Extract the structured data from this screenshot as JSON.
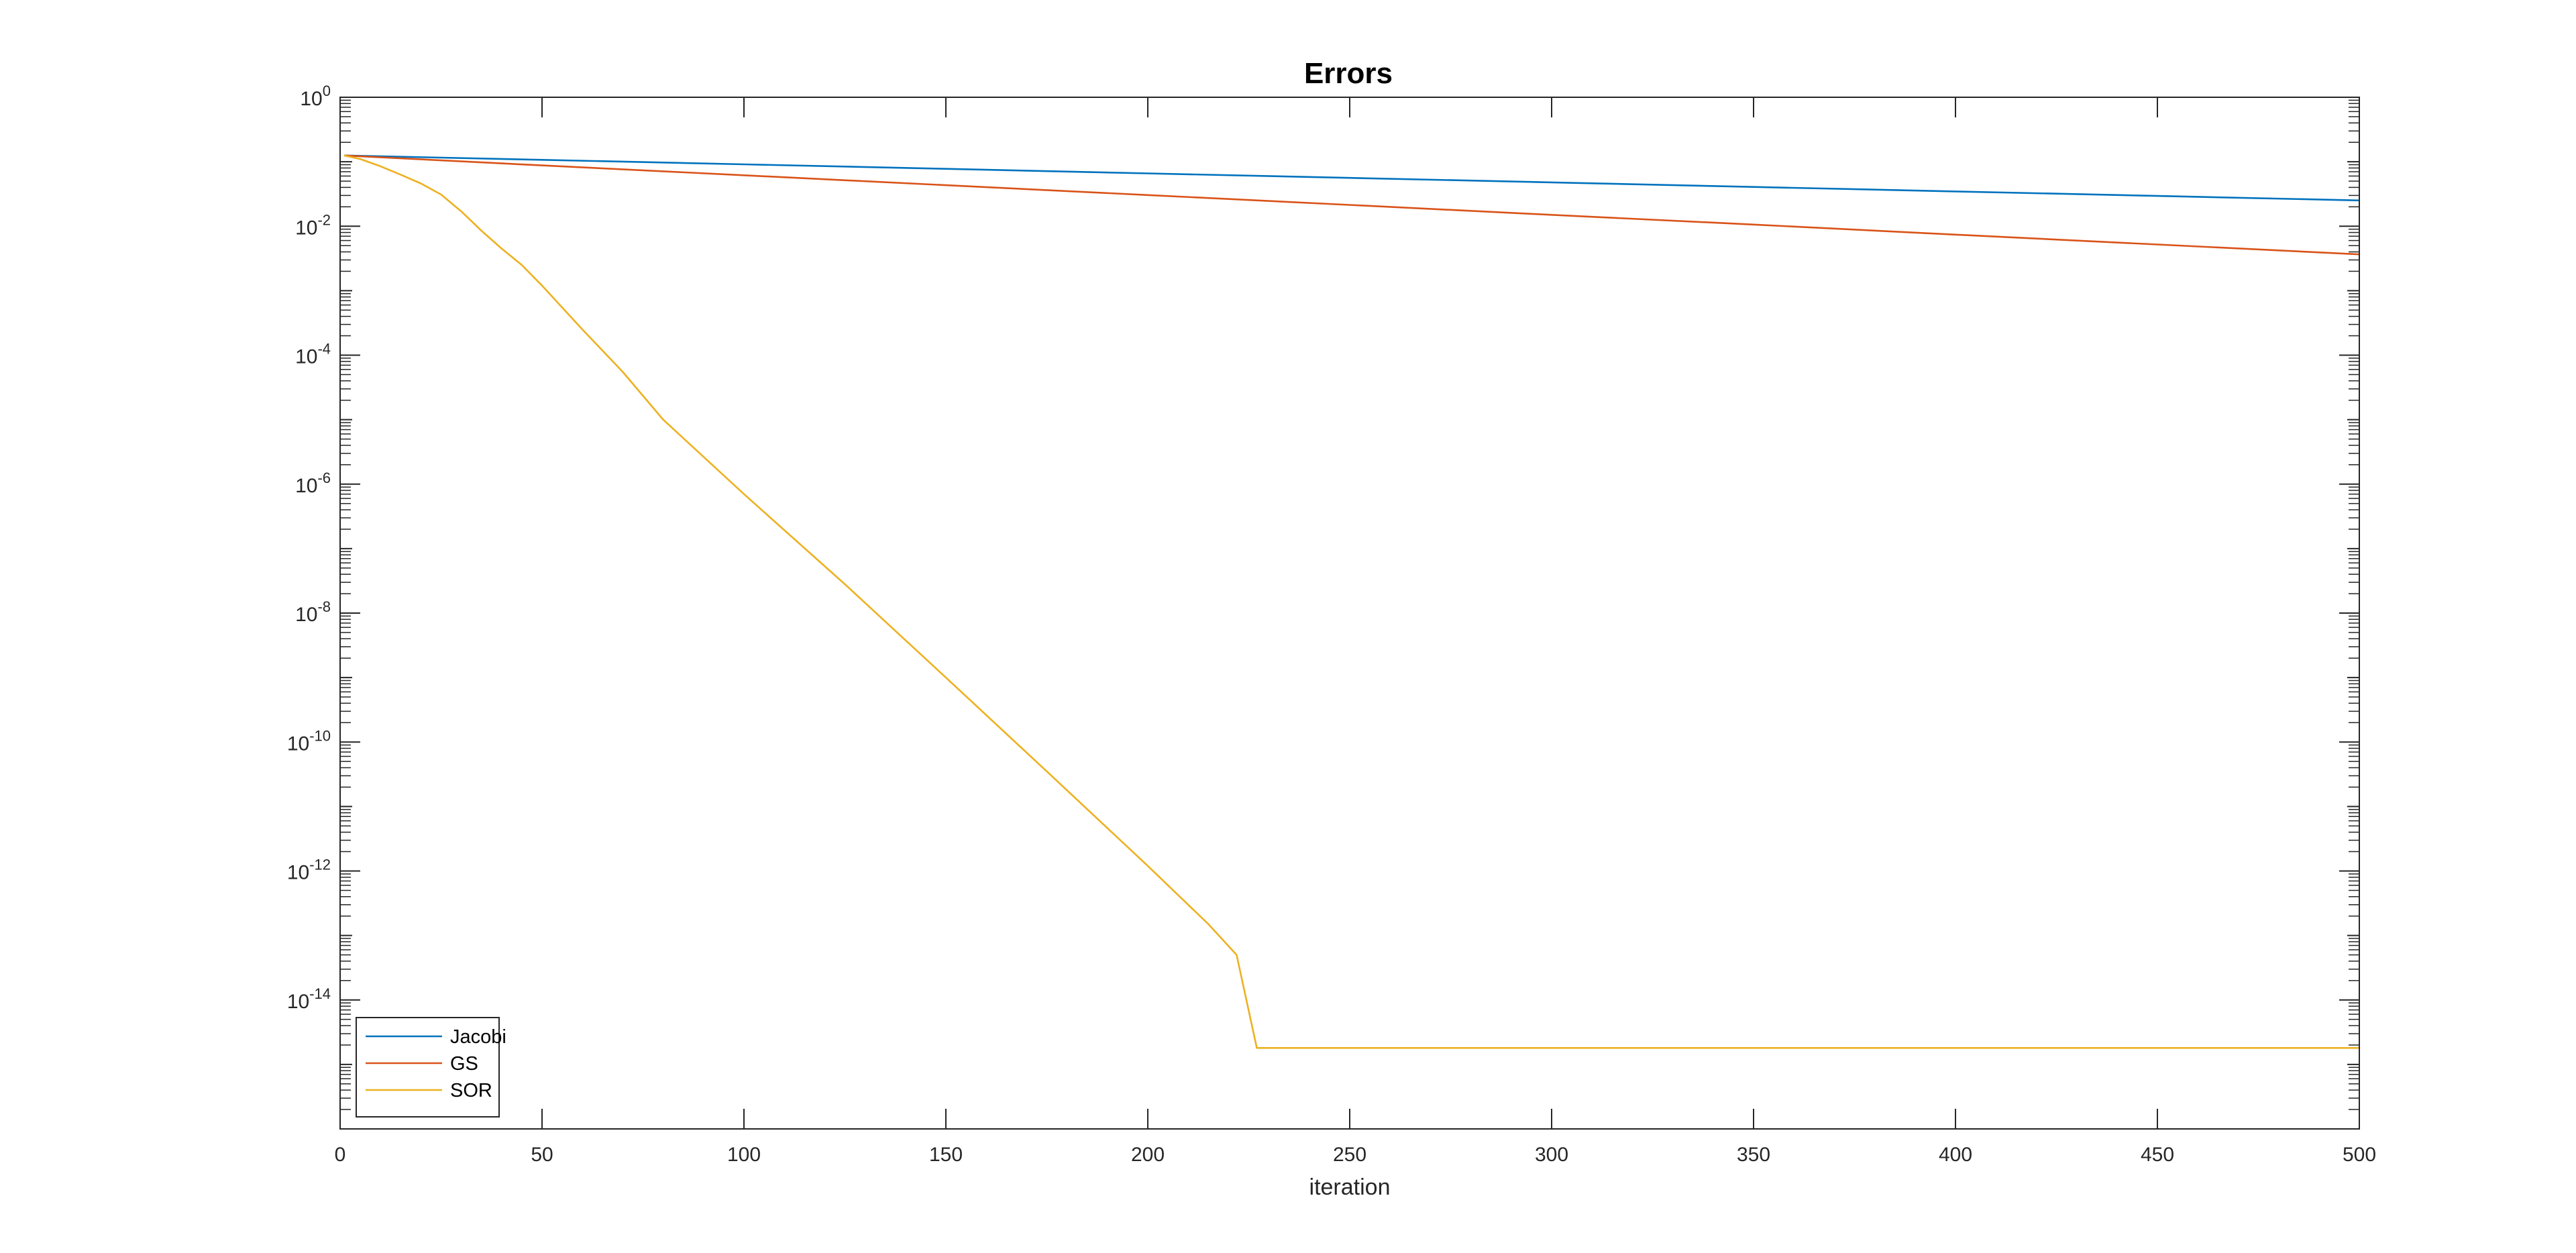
{
  "chart_data": {
    "type": "line",
    "title": "Errors",
    "xlabel": "iteration",
    "ylabel": "",
    "xlim": [
      0,
      500
    ],
    "ylim_exponents": [
      -16,
      0
    ],
    "y_scale": "log",
    "grid": false,
    "legend_location": "bottom-left",
    "x_ticks": [
      "0",
      "50",
      "100",
      "150",
      "200",
      "250",
      "300",
      "350",
      "400",
      "450",
      "500"
    ],
    "y_ticks": [
      {
        "base": "10",
        "exp": "0",
        "value": 1
      },
      {
        "base": "10",
        "exp": "-2",
        "value": 0.01
      },
      {
        "base": "10",
        "exp": "-4",
        "value": 0.0001
      },
      {
        "base": "10",
        "exp": "-6",
        "value": 1e-06
      },
      {
        "base": "10",
        "exp": "-8",
        "value": 1e-08
      },
      {
        "base": "10",
        "exp": "-10",
        "value": 1e-10
      },
      {
        "base": "10",
        "exp": "-12",
        "value": 1e-12
      },
      {
        "base": "10",
        "exp": "-14",
        "value": 1e-14
      }
    ],
    "series": [
      {
        "name": "Jacobi",
        "color": "#0072BD",
        "x": [
          1,
          50,
          100,
          150,
          200,
          250,
          300,
          350,
          400,
          450,
          500
        ],
        "y": [
          0.125,
          0.107,
          0.0912,
          0.0776,
          0.066,
          0.0562,
          0.0478,
          0.0407,
          0.0346,
          0.0295,
          0.0251
        ]
      },
      {
        "name": "GS",
        "color": "#D95319",
        "x": [
          1,
          50,
          100,
          150,
          200,
          250,
          300,
          350,
          400,
          450,
          500
        ],
        "y": [
          0.125,
          0.0878,
          0.0617,
          0.0433,
          0.0304,
          0.0214,
          0.015,
          0.0106,
          0.00741,
          0.00521,
          0.00366
        ]
      },
      {
        "name": "SOR",
        "color": "#EDB120",
        "x": [
          1,
          5,
          10,
          15,
          20,
          25,
          30,
          35,
          40,
          45,
          50,
          60,
          70,
          80,
          100,
          125,
          150,
          175,
          200,
          215,
          222,
          227,
          250,
          300,
          350,
          400,
          450,
          500
        ],
        "y": [
          0.125,
          0.11,
          0.085,
          0.063,
          0.046,
          0.031,
          0.017,
          0.0085,
          0.0045,
          0.0025,
          0.0012,
          0.00025,
          5.5e-05,
          1e-05,
          7e-07,
          2.8e-08,
          1e-09,
          3.5e-11,
          1.2e-12,
          1.5e-13,
          5e-14,
          1.8e-15,
          1.8e-15,
          1.8e-15,
          1.8e-15,
          1.8e-15,
          1.8e-15,
          1.8e-15
        ]
      }
    ]
  }
}
